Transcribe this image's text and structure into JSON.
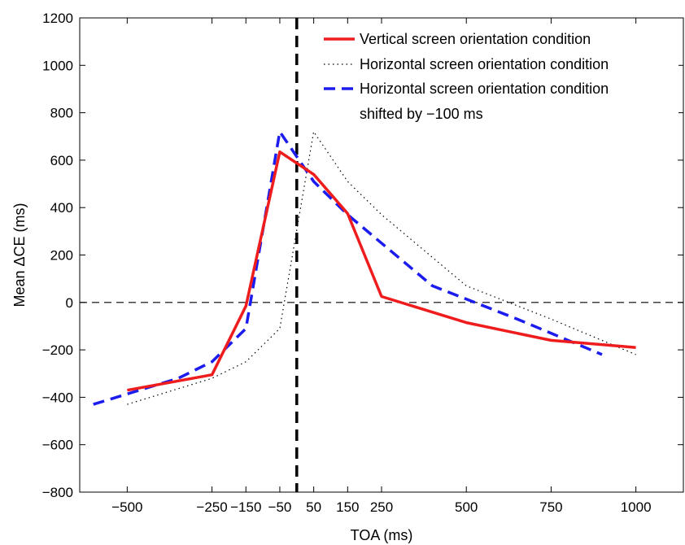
{
  "chart_data": {
    "type": "line",
    "title": "",
    "xlabel": "TOA (ms)",
    "ylabel": "Mean ΔCE (ms)",
    "xlim": [
      -640,
      1140
    ],
    "ylim": [
      -800,
      1200
    ],
    "x_ticks": [
      -500,
      -250,
      -150,
      -50,
      50,
      150,
      250,
      500,
      750,
      1000
    ],
    "x_tick_labels": [
      "−500",
      "−250",
      "−150",
      "−50",
      "50",
      "150",
      "250",
      "500",
      "750",
      "1000"
    ],
    "y_ticks": [
      -800,
      -600,
      -400,
      -200,
      0,
      200,
      400,
      600,
      800,
      1000,
      1200
    ],
    "y_tick_labels": [
      "−800",
      "−600",
      "−400",
      "−200",
      "0",
      "200",
      "400",
      "600",
      "800",
      "1000",
      "1200"
    ],
    "reference_lines": {
      "horizontal_y": 0,
      "vertical_x": 0
    },
    "grid": false,
    "legend_position": "top-right",
    "series": [
      {
        "name": "Vertical screen orientation condition",
        "color": "#ee1c1c",
        "style": "solid",
        "x": [
          -500,
          -250,
          -150,
          -50,
          50,
          150,
          250,
          500,
          750,
          1000
        ],
        "y": [
          -370,
          -305,
          -15,
          635,
          540,
          375,
          25,
          -85,
          -160,
          -190
        ]
      },
      {
        "name": "Horizontal screen orientation condition",
        "color": "#000000",
        "style": "dotted",
        "x": [
          -500,
          -250,
          -150,
          -50,
          50,
          150,
          250,
          500,
          750,
          1000
        ],
        "y": [
          -430,
          -320,
          -250,
          -110,
          720,
          510,
          370,
          70,
          -70,
          -220
        ]
      },
      {
        "name": "Horizontal screen orientation condition",
        "name_line2": "shifted by −100 ms",
        "color": "#1c1cee",
        "style": "dashed",
        "x": [
          -600,
          -350,
          -250,
          -150,
          -50,
          50,
          150,
          400,
          650,
          900
        ],
        "y": [
          -430,
          -320,
          -250,
          -110,
          720,
          510,
          370,
          70,
          -70,
          -220
        ]
      }
    ]
  }
}
